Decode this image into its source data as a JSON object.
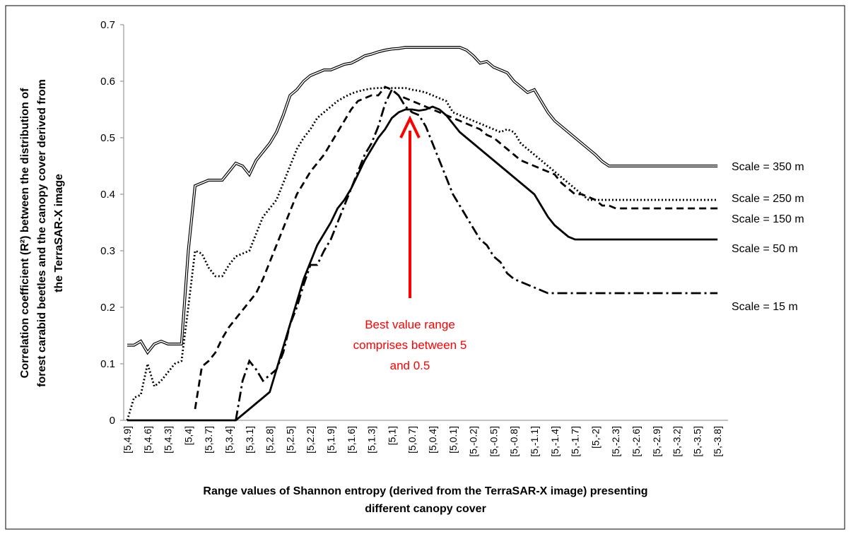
{
  "chart_data": {
    "type": "line",
    "xlabel": [
      "Range values of Shannon entropy (derived from the TerraSAR-X image) presenting",
      "different canopy cover"
    ],
    "ylabel": [
      "Correlation coefficient (R²) between the distribution of",
      "forest carabid beetles and the canopy cover derived from",
      "the TerraSAR-X image"
    ],
    "annotation": [
      "Best value range",
      "comprises between 5",
      "and 0.5"
    ],
    "annotation_color": "#ff0000",
    "ylim": [
      0,
      0.7
    ],
    "yticks": [
      0,
      0.1,
      0.2,
      0.3,
      0.4,
      0.5,
      0.6,
      0.7
    ],
    "categories": [
      "[5,4.9]",
      null,
      null,
      "[5,4.6]",
      null,
      null,
      "[5,4.3]",
      null,
      null,
      "[5,4]",
      null,
      null,
      "[5,3.7]",
      null,
      null,
      "[5,3.4]",
      null,
      null,
      "[5,3.1]",
      null,
      null,
      "[5,2.8]",
      null,
      null,
      "[5,2.5]",
      null,
      null,
      "[5,2.2]",
      null,
      null,
      "[5,1.9]",
      null,
      null,
      "[5,1.6]",
      null,
      null,
      "[5,1.3]",
      null,
      null,
      "[5,1]",
      null,
      null,
      "[5,0.7]",
      null,
      null,
      "[5,0.4]",
      null,
      null,
      "[5,0.1]",
      null,
      null,
      "[5,-0.2]",
      null,
      null,
      "[5,-0.5]",
      null,
      null,
      "[5,-0.8]",
      null,
      null,
      "[5,-1.1]",
      null,
      null,
      "[5,-1.4]",
      null,
      null,
      "[5,-1.7]",
      null,
      null,
      "[5,-2]",
      null,
      null,
      "[5,-2.3]",
      null,
      null,
      "[5,-2.6]",
      null,
      null,
      "[5,-2.9]",
      null,
      null,
      "[5,-3.2]",
      null,
      null,
      "[5,-3.5]",
      null,
      null,
      "[5,-3.8]"
    ],
    "series": [
      {
        "name": "Scale = 350 m",
        "color": "#000000",
        "line_style": "double",
        "values": [
          0.133,
          0.133,
          0.14,
          0.12,
          0.135,
          0.14,
          0.135,
          0.135,
          0.135,
          0.3,
          0.415,
          0.42,
          0.425,
          0.425,
          0.425,
          0.44,
          0.455,
          0.45,
          0.435,
          0.46,
          0.475,
          0.49,
          0.51,
          0.54,
          0.575,
          0.585,
          0.6,
          0.61,
          0.615,
          0.62,
          0.62,
          0.625,
          0.63,
          0.632,
          0.638,
          0.645,
          0.648,
          0.652,
          0.655,
          0.657,
          0.658,
          0.66,
          0.66,
          0.66,
          0.66,
          0.66,
          0.66,
          0.66,
          0.66,
          0.66,
          0.655,
          0.645,
          0.632,
          0.635,
          0.625,
          0.62,
          0.615,
          0.6,
          0.59,
          0.58,
          0.585,
          0.565,
          0.545,
          0.53,
          0.52,
          0.51,
          0.5,
          0.49,
          0.48,
          0.47,
          0.458,
          0.45,
          0.45,
          0.45,
          0.45,
          0.45,
          0.45,
          0.45,
          0.45,
          0.45,
          0.45,
          0.45,
          0.45,
          0.45,
          0.45,
          0.45,
          0.45,
          0.45
        ]
      },
      {
        "name": "Scale = 250 m",
        "color": "#000000",
        "line_style": "dotted",
        "values": [
          0,
          0.04,
          0.045,
          0.1,
          0.06,
          0.07,
          0.085,
          0.1,
          0.105,
          0.2,
          0.3,
          0.295,
          0.27,
          0.255,
          0.255,
          0.275,
          0.29,
          0.295,
          0.3,
          0.33,
          0.36,
          0.375,
          0.39,
          0.42,
          0.45,
          0.48,
          0.5,
          0.515,
          0.535,
          0.545,
          0.555,
          0.565,
          0.572,
          0.578,
          0.582,
          0.585,
          0.587,
          0.588,
          0.588,
          0.588,
          0.588,
          0.588,
          0.585,
          0.583,
          0.58,
          0.575,
          0.57,
          0.565,
          0.545,
          0.54,
          0.535,
          0.53,
          0.525,
          0.52,
          0.515,
          0.51,
          0.515,
          0.51,
          0.49,
          0.48,
          0.47,
          0.46,
          0.45,
          0.44,
          0.43,
          0.42,
          0.41,
          0.4,
          0.39,
          0.39,
          0.39,
          0.39,
          0.39,
          0.39,
          0.39,
          0.39,
          0.39,
          0.39,
          0.39,
          0.39,
          0.39,
          0.39,
          0.39,
          0.39,
          0.39,
          0.39,
          0.39,
          0.39
        ]
      },
      {
        "name": "Scale = 150 m",
        "color": "#000000",
        "line_style": "dashed",
        "values": [
          null,
          null,
          null,
          null,
          null,
          null,
          null,
          null,
          null,
          null,
          0.02,
          0.095,
          0.105,
          0.12,
          0.145,
          0.165,
          0.18,
          0.195,
          0.21,
          0.225,
          0.25,
          0.28,
          0.31,
          0.34,
          0.37,
          0.4,
          0.42,
          0.44,
          0.455,
          0.47,
          0.49,
          0.51,
          0.53,
          0.55,
          0.565,
          0.57,
          0.575,
          0.575,
          0.59,
          0.585,
          0.575,
          0.57,
          0.565,
          0.56,
          0.555,
          0.55,
          0.545,
          0.54,
          0.535,
          0.53,
          0.525,
          0.52,
          0.515,
          0.505,
          0.5,
          0.49,
          0.48,
          0.47,
          0.46,
          0.455,
          0.45,
          0.445,
          0.44,
          0.435,
          0.42,
          0.41,
          0.4,
          0.4,
          0.395,
          0.39,
          0.38,
          0.38,
          0.375,
          0.375,
          0.375,
          0.375,
          0.375,
          0.375,
          0.375,
          0.375,
          0.375,
          0.375,
          0.375,
          0.375,
          0.375,
          0.375,
          0.375,
          0.375
        ]
      },
      {
        "name": "Scale = 50 m",
        "color": "#000000",
        "line_style": "solid",
        "values": [
          0,
          0,
          0,
          0,
          0,
          0,
          0,
          0,
          0,
          0,
          0,
          0,
          0,
          0,
          0,
          0,
          0,
          0.01,
          0.02,
          0.03,
          0.04,
          0.05,
          0.09,
          0.13,
          0.17,
          0.21,
          0.25,
          0.28,
          0.31,
          0.33,
          0.35,
          0.375,
          0.39,
          0.41,
          0.435,
          0.46,
          0.48,
          0.5,
          0.515,
          0.535,
          0.545,
          0.55,
          0.55,
          0.548,
          0.55,
          0.555,
          0.55,
          0.54,
          0.525,
          0.51,
          0.5,
          0.49,
          0.48,
          0.47,
          0.46,
          0.45,
          0.44,
          0.43,
          0.42,
          0.41,
          0.4,
          0.38,
          0.36,
          0.345,
          0.335,
          0.325,
          0.32,
          0.32,
          0.32,
          0.32,
          0.32,
          0.32,
          0.32,
          0.32,
          0.32,
          0.32,
          0.32,
          0.32,
          0.32,
          0.32,
          0.32,
          0.32,
          0.32,
          0.32,
          0.32,
          0.32,
          0.32,
          0.32
        ]
      },
      {
        "name": "Scale = 15 m",
        "color": "#000000",
        "line_style": "dashdot",
        "values": [
          null,
          null,
          null,
          null,
          null,
          null,
          null,
          null,
          null,
          null,
          null,
          null,
          null,
          null,
          null,
          null,
          0,
          0.07,
          0.105,
          0.09,
          0.07,
          0.08,
          0.09,
          0.12,
          0.17,
          0.2,
          0.24,
          0.275,
          0.275,
          0.3,
          0.32,
          0.35,
          0.38,
          0.41,
          0.44,
          0.47,
          0.49,
          0.52,
          0.56,
          0.585,
          0.575,
          0.555,
          0.545,
          0.54,
          0.52,
          0.49,
          0.46,
          0.43,
          0.4,
          0.38,
          0.36,
          0.34,
          0.32,
          0.31,
          0.29,
          0.28,
          0.26,
          0.25,
          0.245,
          0.24,
          0.235,
          0.23,
          0.225,
          0.225,
          0.225,
          0.225,
          0.225,
          0.225,
          0.225,
          0.225,
          0.225,
          0.225,
          0.225,
          0.225,
          0.225,
          0.225,
          0.225,
          0.225,
          0.225,
          0.225,
          0.225,
          0.225,
          0.225,
          0.225,
          0.225,
          0.225,
          0.225,
          0.225
        ]
      }
    ]
  }
}
